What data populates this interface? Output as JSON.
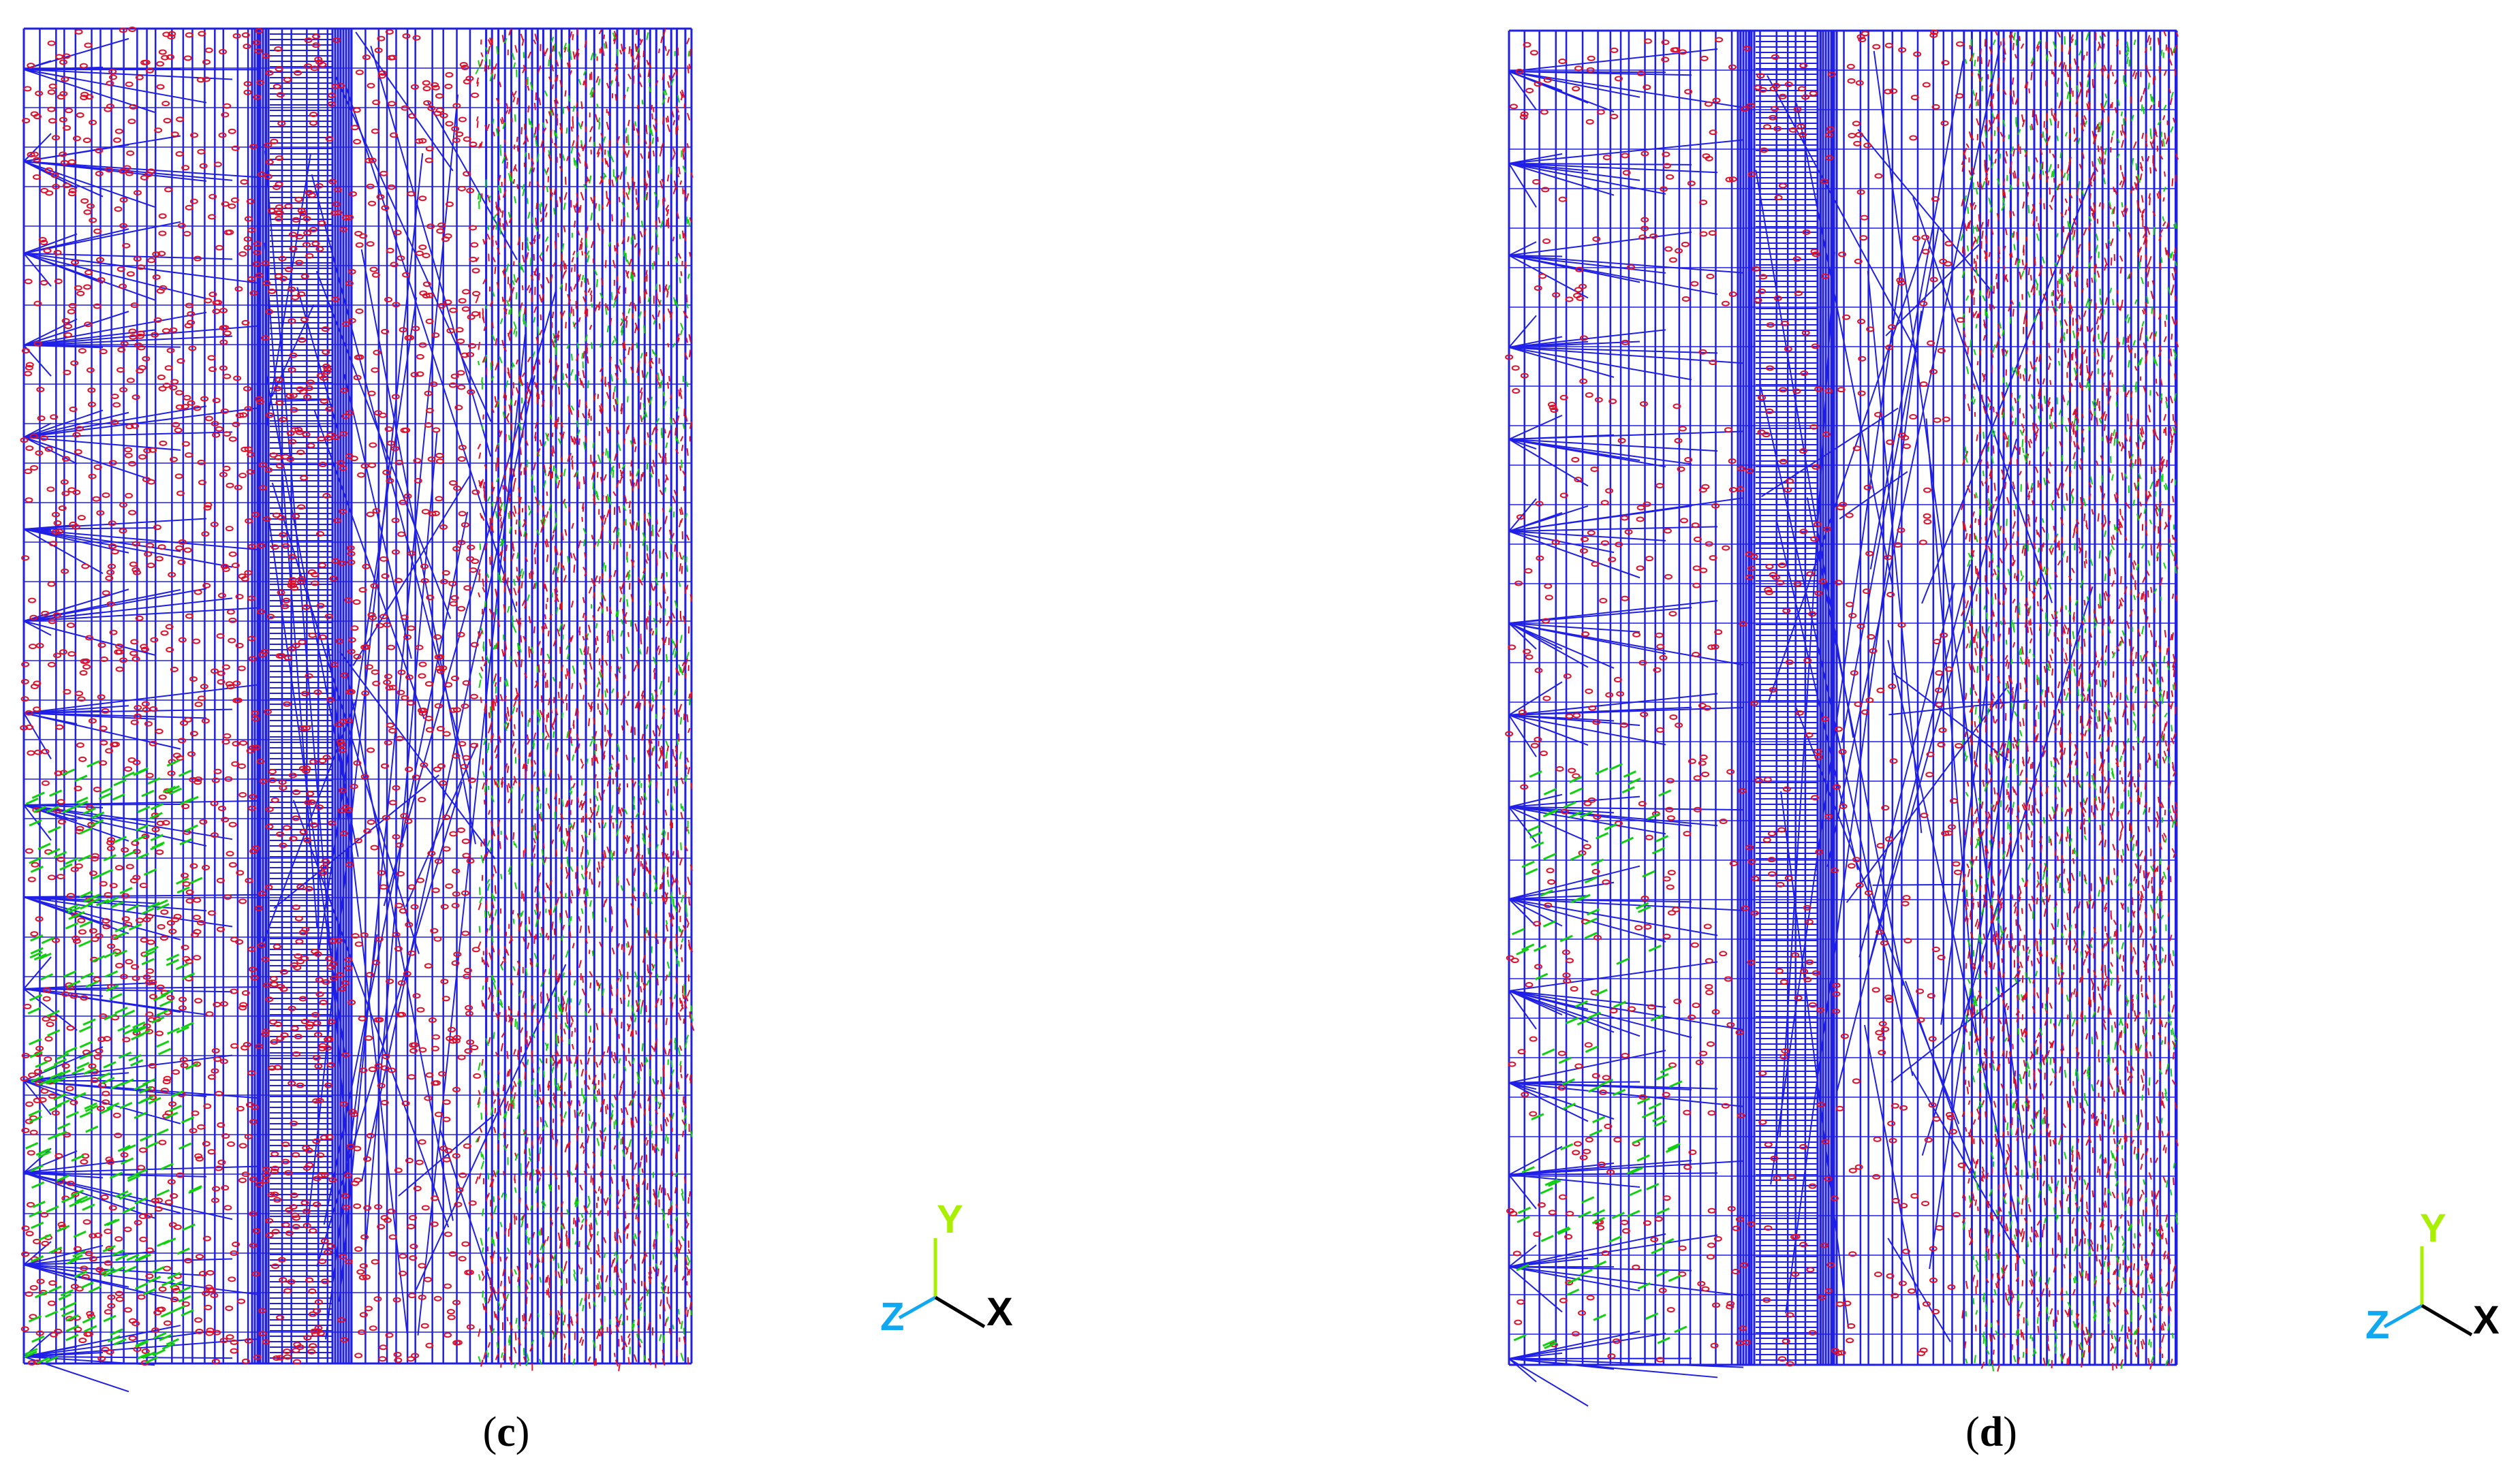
{
  "panels": [
    {
      "id": "c",
      "caption_open": "(",
      "caption_letter": "c",
      "caption_close": ")",
      "triad": {
        "y_label": "Y",
        "z_label": "Z",
        "x_label": "X"
      }
    },
    {
      "id": "d",
      "caption_open": "(",
      "caption_letter": "d",
      "caption_close": ")",
      "triad": {
        "y_label": "Y",
        "z_label": "Z",
        "x_label": "X"
      }
    }
  ],
  "colors": {
    "mesh": "#1f1fe6",
    "element_marks": "#e0102a",
    "constraints": "#10d010",
    "axis_y": "#a8f000",
    "axis_z": "#10a8f0",
    "axis_x": "#000000"
  }
}
